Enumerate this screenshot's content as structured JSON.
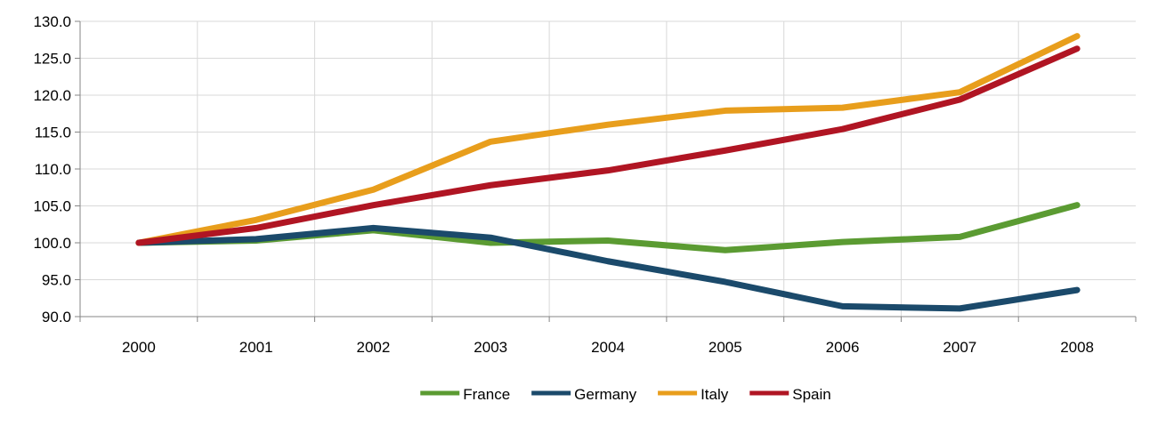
{
  "chart_data": {
    "type": "line",
    "title": "",
    "xlabel": "",
    "ylabel": "",
    "categories": [
      "2000",
      "2001",
      "2002",
      "2003",
      "2004",
      "2005",
      "2006",
      "2007",
      "2008"
    ],
    "ylim": [
      90,
      130
    ],
    "yticks": [
      130,
      125,
      120,
      115,
      110,
      105,
      100,
      95,
      90
    ],
    "ytick_labels": [
      "130.0",
      "125.0",
      "120.0",
      "115.0",
      "110.0",
      "105.0",
      "100.0",
      "95.0",
      "90.0"
    ],
    "grid": true,
    "legend_position": "bottom-center",
    "series": [
      {
        "name": "France",
        "color": "#5B9B32",
        "values": [
          100.0,
          100.3,
          101.7,
          100.0,
          100.3,
          99.0,
          100.1,
          100.8,
          105.1
        ]
      },
      {
        "name": "Germany",
        "color": "#1B4A6B",
        "values": [
          100.0,
          100.5,
          102.0,
          100.7,
          97.5,
          94.7,
          91.4,
          91.1,
          93.6
        ]
      },
      {
        "name": "Italy",
        "color": "#E89E1C",
        "values": [
          100.0,
          103.1,
          107.2,
          113.7,
          116.0,
          117.9,
          118.3,
          120.4,
          128.0
        ]
      },
      {
        "name": "Spain",
        "color": "#B01523",
        "values": [
          100.0,
          102.0,
          105.1,
          107.8,
          109.8,
          112.5,
          115.4,
          119.4,
          126.3
        ]
      }
    ]
  }
}
